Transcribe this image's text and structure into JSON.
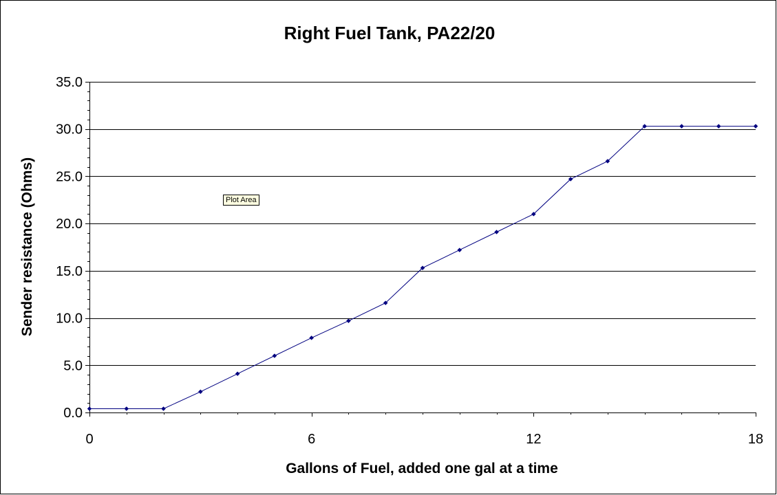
{
  "chart_data": {
    "type": "line",
    "title": "Right Fuel Tank, PA22/20",
    "xlabel": "Gallons of Fuel, added one gal at a time",
    "ylabel": "Sender resistance (Ohms)",
    "xlim": [
      0,
      18
    ],
    "ylim": [
      0,
      35
    ],
    "x_ticks": [
      "0",
      "6",
      "12",
      "18"
    ],
    "x_tick_values": [
      0,
      6,
      12,
      18
    ],
    "y_ticks": [
      "0.0",
      "5.0",
      "10.0",
      "15.0",
      "20.0",
      "25.0",
      "30.0",
      "35.0"
    ],
    "y_tick_values": [
      0,
      5,
      10,
      15,
      20,
      25,
      30,
      35
    ],
    "grid": "horizontal",
    "series": [
      {
        "color": "#000080",
        "x": [
          0,
          1,
          2,
          3,
          4,
          5,
          6,
          7,
          8,
          9,
          10,
          11,
          12,
          13,
          14,
          15,
          16,
          17,
          18
        ],
        "y": [
          0.4,
          0.4,
          0.4,
          2.2,
          4.1,
          6.0,
          7.9,
          9.7,
          11.6,
          15.3,
          17.2,
          19.1,
          21.0,
          24.7,
          26.6,
          30.3,
          30.3,
          30.3,
          30.3
        ]
      }
    ]
  },
  "tooltip": {
    "text": "Plot Area"
  }
}
